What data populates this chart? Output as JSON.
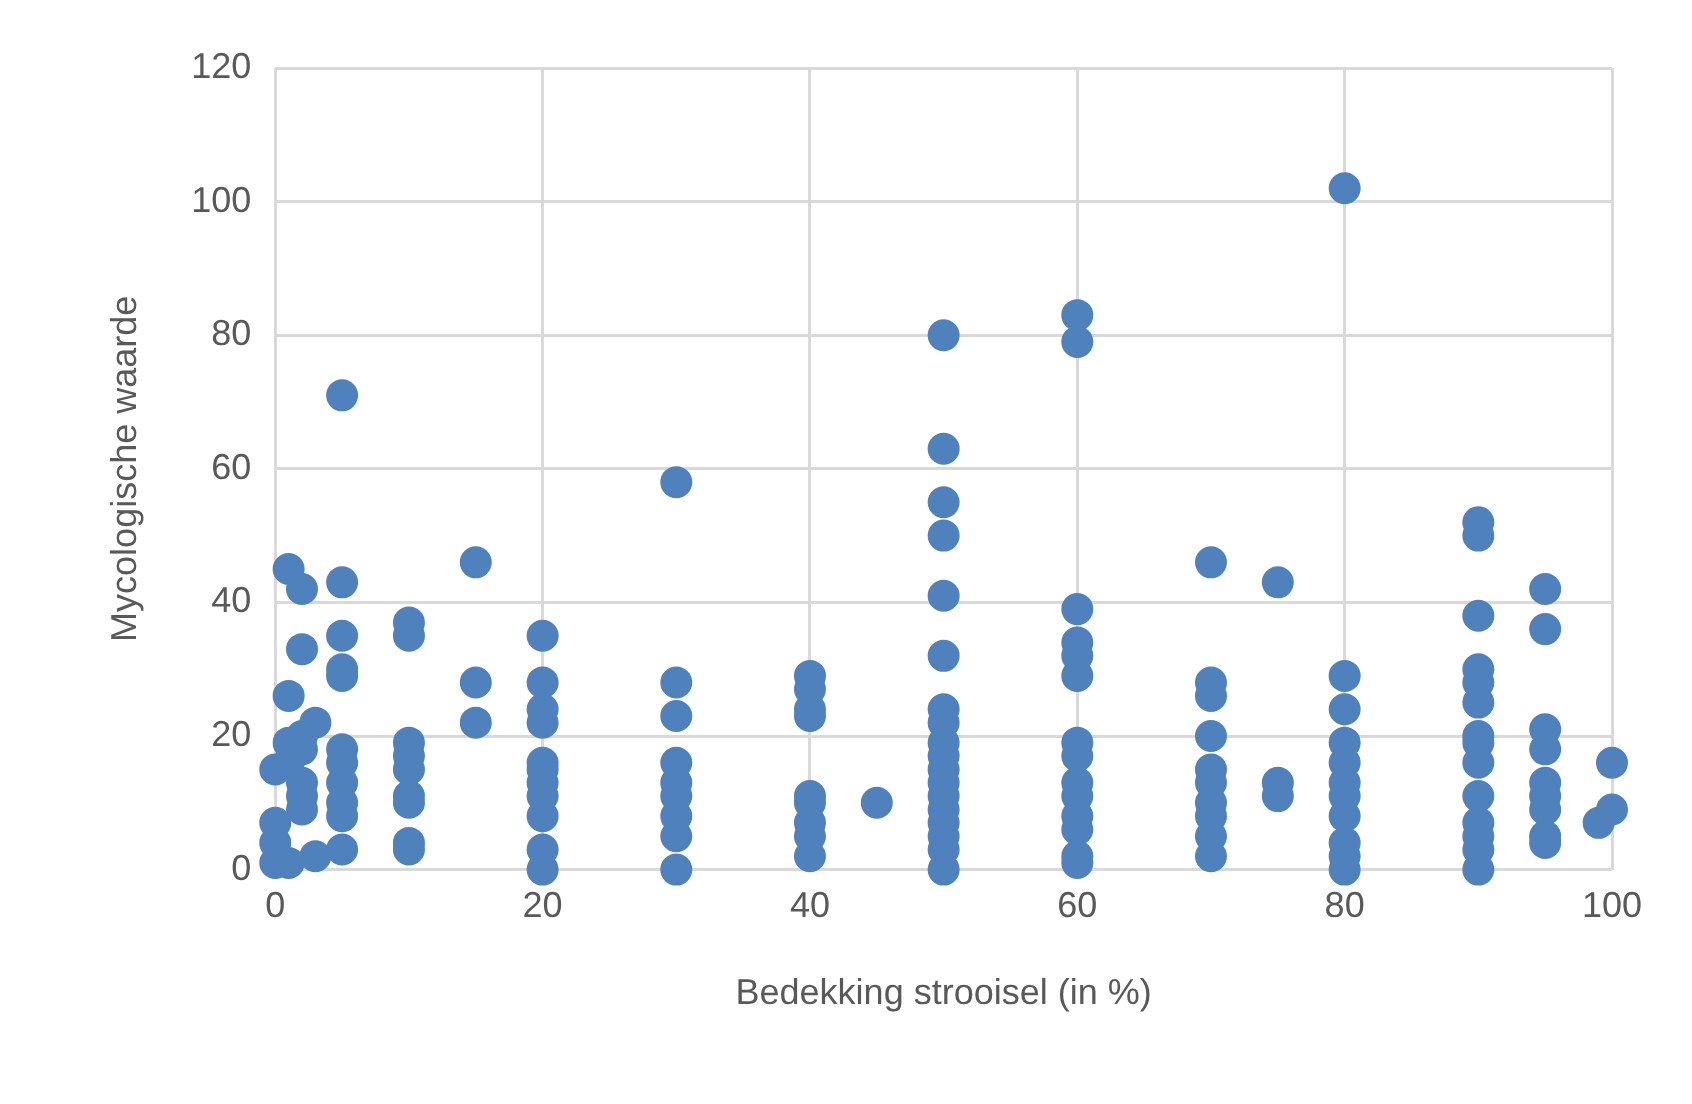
{
  "chart_data": {
    "type": "scatter",
    "xlabel": "Bedekking strooisel (in %)",
    "ylabel": "Mycologische waarde",
    "xlim": [
      0,
      100
    ],
    "xticks": [
      0,
      20,
      40,
      60,
      80,
      100
    ],
    "ylim": [
      0,
      120
    ],
    "yticks": [
      0,
      20,
      40,
      60,
      80,
      100,
      120
    ],
    "grid": true,
    "marker": "circle",
    "series": [
      {
        "color": "#4f81bd",
        "x": [
          0,
          0,
          0,
          0,
          1,
          1,
          1,
          1,
          1,
          2,
          2,
          2,
          2,
          2,
          2,
          2,
          3,
          3,
          5,
          5,
          5,
          5,
          5,
          5,
          5,
          5,
          5,
          5,
          5,
          10,
          10,
          10,
          10,
          10,
          10,
          10,
          10,
          10,
          15,
          15,
          15,
          20,
          20,
          20,
          20,
          20,
          20,
          20,
          20,
          20,
          20,
          20,
          30,
          30,
          30,
          30,
          30,
          30,
          30,
          30,
          30,
          40,
          40,
          40,
          40,
          40,
          40,
          40,
          40,
          40,
          45,
          50,
          50,
          50,
          50,
          50,
          50,
          50,
          50,
          50,
          50,
          50,
          50,
          50,
          50,
          50,
          50,
          50,
          50,
          60,
          60,
          60,
          60,
          60,
          60,
          60,
          60,
          60,
          60,
          60,
          60,
          60,
          60,
          70,
          70,
          70,
          70,
          70,
          70,
          70,
          70,
          70,
          70,
          75,
          75,
          75,
          80,
          80,
          80,
          80,
          80,
          80,
          80,
          80,
          80,
          80,
          80,
          90,
          90,
          90,
          90,
          90,
          90,
          90,
          90,
          90,
          90,
          90,
          90,
          90,
          90,
          95,
          95,
          95,
          95,
          95,
          95,
          95,
          95,
          95,
          99,
          100,
          100
        ],
        "values": [
          15,
          7,
          4,
          1,
          45,
          26,
          19,
          16,
          1,
          42,
          33,
          20,
          18,
          13,
          11,
          9,
          22,
          2,
          71,
          43,
          35,
          30,
          29,
          18,
          16,
          13,
          10,
          8,
          3,
          37,
          35,
          19,
          17,
          15,
          11,
          10,
          4,
          3,
          46,
          28,
          22,
          35,
          28,
          24,
          22,
          16,
          15,
          13,
          11,
          8,
          3,
          0,
          58,
          28,
          23,
          16,
          13,
          11,
          8,
          5,
          0,
          29,
          27,
          24,
          23,
          11,
          10,
          7,
          5,
          2,
          10,
          80,
          63,
          55,
          50,
          41,
          32,
          24,
          22,
          19,
          17,
          15,
          13,
          11,
          9,
          7,
          5,
          3,
          0,
          83,
          79,
          39,
          34,
          32,
          29,
          19,
          17,
          13,
          11,
          8,
          6,
          2,
          1,
          46,
          28,
          26,
          20,
          15,
          13,
          10,
          8,
          5,
          2,
          43,
          13,
          11,
          102,
          29,
          24,
          19,
          16,
          13,
          11,
          8,
          4,
          2,
          0,
          52,
          50,
          38,
          30,
          28,
          25,
          20,
          19,
          16,
          11,
          7,
          5,
          3,
          0,
          42,
          36,
          21,
          18,
          13,
          11,
          9,
          5,
          4,
          7,
          16,
          9
        ]
      }
    ]
  }
}
